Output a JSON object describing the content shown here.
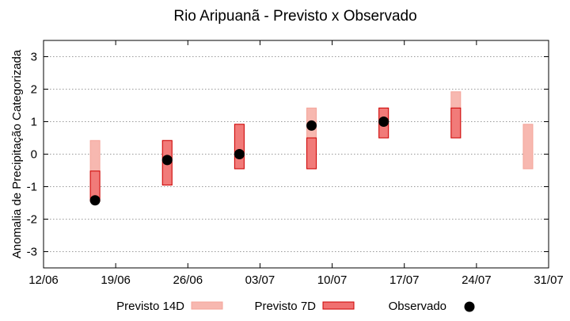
{
  "chart_data": {
    "type": "range-bar",
    "title": "Rio Aripuanã - Previsto x Observado",
    "xlabel": "",
    "ylabel": "Anomalia de Precipitação Categorizada",
    "x_ticks": [
      "12/06",
      "19/06",
      "26/06",
      "03/07",
      "10/07",
      "17/07",
      "24/07",
      "31/07"
    ],
    "xlim": [
      "2018-06-12",
      "2018-07-31"
    ],
    "ylim": [
      -3.5,
      3.5
    ],
    "y_ticks": [
      -3,
      -2,
      -1,
      0,
      1,
      2,
      3
    ],
    "grid": true,
    "legend_position": "bottom",
    "series": [
      {
        "name": "Previsto 14D",
        "kind": "range",
        "color": "#f7b8b0",
        "points": [
          {
            "x": "2018-06-17",
            "low": -1.45,
            "high": 0.42
          },
          {
            "x": "2018-06-24",
            "low": -0.95,
            "high": 0.42
          },
          {
            "x": "2018-07-01",
            "low": -0.45,
            "high": 0.92
          },
          {
            "x": "2018-07-08",
            "low": -0.45,
            "high": 1.42
          },
          {
            "x": "2018-07-15",
            "low": 0.5,
            "high": 1.42
          },
          {
            "x": "2018-07-22",
            "low": 0.5,
            "high": 1.92
          },
          {
            "x": "2018-07-29",
            "low": -0.45,
            "high": 0.92
          }
        ]
      },
      {
        "name": "Previsto 7D",
        "kind": "range",
        "color": "#f07070",
        "edge": "#cc0000",
        "points": [
          {
            "x": "2018-06-17",
            "low": -1.45,
            "high": -0.52
          },
          {
            "x": "2018-06-24",
            "low": -0.95,
            "high": 0.42
          },
          {
            "x": "2018-07-01",
            "low": -0.45,
            "high": 0.92
          },
          {
            "x": "2018-07-08",
            "low": -0.45,
            "high": 0.5
          },
          {
            "x": "2018-07-15",
            "low": 0.5,
            "high": 1.42
          },
          {
            "x": "2018-07-22",
            "low": 0.5,
            "high": 1.42
          }
        ]
      },
      {
        "name": "Observado",
        "kind": "point",
        "color": "#000000",
        "points": [
          {
            "x": "2018-06-17",
            "y": -1.42
          },
          {
            "x": "2018-06-24",
            "y": -0.18
          },
          {
            "x": "2018-07-01",
            "y": 0.0
          },
          {
            "x": "2018-07-08",
            "y": 0.88
          },
          {
            "x": "2018-07-15",
            "y": 1.0
          }
        ]
      }
    ]
  }
}
